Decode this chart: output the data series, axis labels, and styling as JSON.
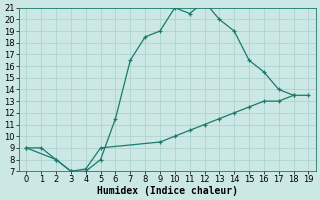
{
  "title": "",
  "xlabel": "Humidex (Indice chaleur)",
  "x": [
    0,
    1,
    2,
    3,
    4,
    5,
    6,
    7,
    8,
    9,
    10,
    11,
    12,
    13,
    14,
    15,
    16,
    17,
    18,
    19
  ],
  "line1_y": [
    9,
    9,
    8,
    7,
    7,
    8,
    11.5,
    16.5,
    18.5,
    19,
    21,
    20.5,
    21.5,
    20,
    19,
    16.5,
    15.5,
    14,
    13.5,
    null
  ],
  "line2_x": [
    0,
    2,
    3,
    4,
    5,
    9,
    10,
    11,
    12,
    13,
    14,
    15,
    16,
    17,
    18,
    19
  ],
  "line2_y": [
    9,
    8,
    7,
    7.2,
    9,
    9.5,
    10,
    10.5,
    11,
    11.5,
    12,
    12.5,
    13,
    13,
    13.5,
    13.5
  ],
  "ylim": [
    7,
    21
  ],
  "xlim": [
    -0.5,
    19.5
  ],
  "yticks": [
    7,
    8,
    9,
    10,
    11,
    12,
    13,
    14,
    15,
    16,
    17,
    18,
    19,
    20,
    21
  ],
  "xticks": [
    0,
    1,
    2,
    3,
    4,
    5,
    6,
    7,
    8,
    9,
    10,
    11,
    12,
    13,
    14,
    15,
    16,
    17,
    18,
    19
  ],
  "line_color": "#1a7a6e",
  "bg_color": "#cce8e4",
  "grid_color": "#aacfcb",
  "label_fontsize": 7,
  "tick_fontsize": 6
}
